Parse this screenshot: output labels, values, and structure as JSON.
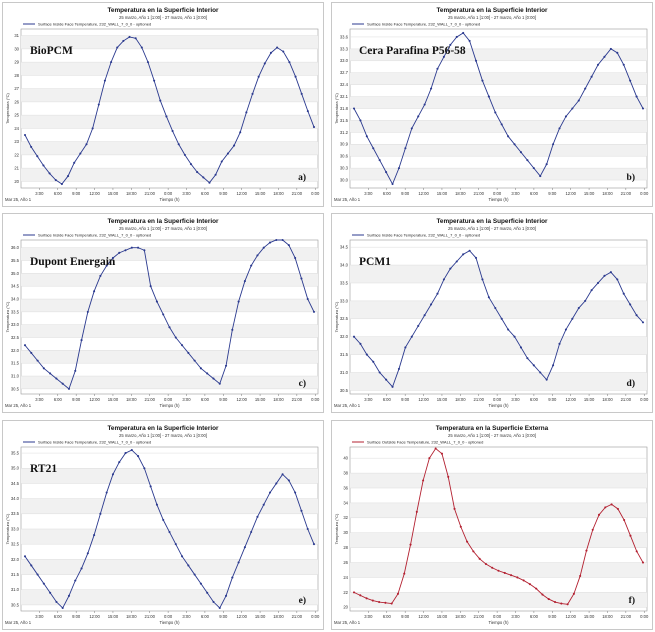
{
  "axis_common": {
    "x_ticks": [
      "3:00",
      "6:00",
      "9:00",
      "12:00",
      "15:00",
      "18:00",
      "21:00",
      "0:00",
      "3:00",
      "6:00",
      "9:00",
      "12:00",
      "15:00",
      "18:00",
      "21:00",
      "0:00"
    ],
    "date_label": "Mar 25, Año 1",
    "x_axis_label": "Tiempo (h)",
    "y_axis_label": "Temperatura (°C)"
  },
  "chart_data": [
    {
      "type": "line",
      "id": "a",
      "title": "Temperatura en la Superficie Interior",
      "subtitle": "25 marzo, Año 1 [1:00] - 27 marzo, Año 1 [0:00]",
      "legend": "Surface Inside Face Temperature, 232_WALL_7_0_0 - optioned",
      "material_label": "BioPCM",
      "panel_letter": "a)",
      "color": "#2b3a8f",
      "y_ticks": [
        "31",
        "30",
        "29",
        "28",
        "27",
        "26",
        "25",
        "24",
        "23",
        "22",
        "21",
        "20"
      ],
      "ylim": [
        19.5,
        31.5
      ],
      "values": [
        23.5,
        22.6,
        21.9,
        21.2,
        20.6,
        20.1,
        19.8,
        20.4,
        21.4,
        22.1,
        22.8,
        24.0,
        25.8,
        27.6,
        29.0,
        30.1,
        30.6,
        30.9,
        30.8,
        30.1,
        29.0,
        27.6,
        26.1,
        24.9,
        23.8,
        22.8,
        22.0,
        21.3,
        20.7,
        20.3,
        19.9,
        20.5,
        21.5,
        22.1,
        22.7,
        23.7,
        25.2,
        26.6,
        27.9,
        28.9,
        29.7,
        30.1,
        29.8,
        29.0,
        27.9,
        26.6,
        25.3,
        24.1
      ]
    },
    {
      "type": "line",
      "id": "b",
      "title": "Temperatura en la Superficie Interior",
      "subtitle": "25 marzo, Año 1 [1:00] - 27 marzo, Año 1 [0:00]",
      "legend": "Surface Inside Face Temperature, 232_WALL_7_0_0 - optioned",
      "material_label": "Cera Parafina P56-58",
      "panel_letter": "b)",
      "color": "#2b3a8f",
      "y_ticks": [
        "33.6",
        "33.3",
        "33.0",
        "32.7",
        "32.4",
        "32.1",
        "31.8",
        "31.5",
        "31.2",
        "30.9",
        "30.6",
        "30.3",
        "30.0"
      ],
      "ylim": [
        29.8,
        33.8
      ],
      "values": [
        31.8,
        31.5,
        31.1,
        30.8,
        30.5,
        30.2,
        29.9,
        30.3,
        30.8,
        31.3,
        31.6,
        31.9,
        32.3,
        32.8,
        33.1,
        33.4,
        33.6,
        33.7,
        33.5,
        33.0,
        32.5,
        32.1,
        31.7,
        31.4,
        31.1,
        30.9,
        30.7,
        30.5,
        30.3,
        30.1,
        30.4,
        30.9,
        31.3,
        31.6,
        31.8,
        32.0,
        32.3,
        32.6,
        32.9,
        33.1,
        33.3,
        33.2,
        32.9,
        32.5,
        32.1,
        31.8
      ]
    },
    {
      "type": "line",
      "id": "c",
      "title": "Temperatura en la Superficie Interior",
      "subtitle": "25 marzo, Año 1 [1:00] - 27 marzo, Año 1 [0:00]",
      "legend": "Surface Inside Face Temperature, 232_WALL_7_0_0 - optioned",
      "material_label": "Dupont Energain",
      "panel_letter": "c)",
      "color": "#2b3a8f",
      "y_ticks": [
        "36.0",
        "35.5",
        "35.0",
        "34.5",
        "34.0",
        "33.5",
        "33.0",
        "32.5",
        "32.0",
        "31.5",
        "31.0",
        "30.5"
      ],
      "ylim": [
        30.3,
        36.3
      ],
      "values": [
        32.2,
        31.9,
        31.6,
        31.3,
        31.1,
        30.9,
        30.7,
        30.5,
        31.2,
        32.4,
        33.5,
        34.3,
        34.9,
        35.3,
        35.6,
        35.8,
        35.9,
        36.0,
        36.0,
        35.9,
        34.5,
        33.9,
        33.4,
        32.9,
        32.5,
        32.2,
        31.9,
        31.6,
        31.3,
        31.1,
        30.9,
        30.7,
        31.4,
        32.8,
        33.9,
        34.7,
        35.3,
        35.7,
        36.0,
        36.2,
        36.3,
        36.3,
        36.1,
        35.6,
        34.8,
        34.0,
        33.5
      ]
    },
    {
      "type": "line",
      "id": "d",
      "title": "Temperatura en la Superficie Interior",
      "subtitle": "25 marzo, Año 1 [1:00] - 27 marzo, Año 1 [0:00]",
      "legend": "Surface Inside Face Temperature, 232_WALL_7_0_0 - optioned",
      "material_label": "PCM1",
      "panel_letter": "d)",
      "color": "#2b3a8f",
      "y_ticks": [
        "34.5",
        "34.0",
        "33.5",
        "33.0",
        "32.5",
        "32.0",
        "31.5",
        "31.0",
        "30.5"
      ],
      "ylim": [
        30.4,
        34.7
      ],
      "values": [
        32.0,
        31.8,
        31.5,
        31.3,
        31.0,
        30.8,
        30.6,
        31.1,
        31.7,
        32.0,
        32.3,
        32.6,
        32.9,
        33.2,
        33.6,
        33.9,
        34.1,
        34.3,
        34.4,
        34.2,
        33.6,
        33.1,
        32.8,
        32.5,
        32.2,
        32.0,
        31.7,
        31.4,
        31.2,
        31.0,
        30.8,
        31.2,
        31.8,
        32.2,
        32.5,
        32.8,
        33.0,
        33.3,
        33.5,
        33.7,
        33.8,
        33.6,
        33.2,
        32.9,
        32.6,
        32.4
      ]
    },
    {
      "type": "line",
      "id": "e",
      "title": "Temperatura en la Superficie Interior",
      "subtitle": "25 marzo, Año 1 [1:00] - 27 marzo, Año 1 [0:00]",
      "legend": "Surface Inside Face Temperature, 232_WALL_7_0_0 - optioned",
      "material_label": "RT21",
      "panel_letter": "e)",
      "color": "#2b3a8f",
      "y_ticks": [
        "35.5",
        "35.0",
        "34.5",
        "34.0",
        "33.5",
        "33.0",
        "32.5",
        "32.0",
        "31.5",
        "31.0",
        "30.5"
      ],
      "ylim": [
        30.3,
        35.7
      ],
      "values": [
        32.1,
        31.8,
        31.5,
        31.2,
        30.9,
        30.6,
        30.4,
        30.8,
        31.3,
        31.7,
        32.2,
        32.8,
        33.5,
        34.2,
        34.8,
        35.2,
        35.5,
        35.6,
        35.4,
        35.0,
        34.4,
        33.8,
        33.3,
        32.9,
        32.5,
        32.1,
        31.8,
        31.5,
        31.2,
        30.9,
        30.6,
        30.4,
        30.8,
        31.4,
        31.9,
        32.4,
        32.9,
        33.4,
        33.8,
        34.2,
        34.5,
        34.8,
        34.6,
        34.2,
        33.6,
        33.0,
        32.5
      ]
    },
    {
      "type": "line",
      "id": "f",
      "title": "Temperatura en la Superficie Externa",
      "subtitle": "25 marzo, Año 1 [1:00] - 27 marzo, Año 1 [0:00]",
      "legend": "Surface Outside Face Temperature, 232_WALL_7_0_0 - optioned",
      "material_label": "",
      "panel_letter": "f)",
      "color": "#b32030",
      "y_ticks": [
        "40",
        "38",
        "36",
        "34",
        "32",
        "30",
        "28",
        "26",
        "24",
        "22",
        "20"
      ],
      "ylim": [
        19.5,
        41.5
      ],
      "values": [
        22.0,
        21.6,
        21.2,
        20.9,
        20.7,
        20.6,
        20.5,
        21.8,
        24.5,
        28.4,
        32.8,
        37.0,
        40.0,
        41.3,
        40.6,
        37.5,
        33.2,
        30.8,
        28.8,
        27.5,
        26.5,
        25.8,
        25.3,
        24.9,
        24.6,
        24.3,
        24.0,
        23.6,
        23.1,
        22.5,
        21.7,
        21.1,
        20.7,
        20.5,
        20.4,
        21.8,
        24.2,
        27.6,
        30.4,
        32.4,
        33.4,
        33.8,
        33.2,
        31.7,
        29.6,
        27.5,
        26.0
      ]
    }
  ]
}
